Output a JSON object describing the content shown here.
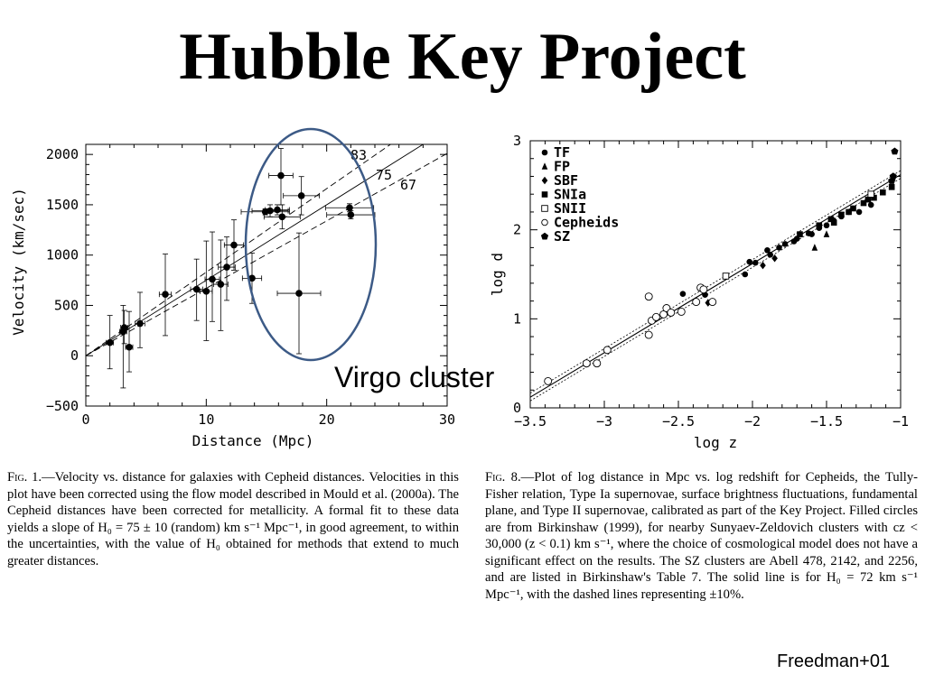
{
  "slide": {
    "title": "Hubble Key Project",
    "annotation": "Virgo cluster",
    "citation": "Freedman+01",
    "ellipse_color": "#3c5a86"
  },
  "caption_left": {
    "label": "Fig. 1.",
    "text": "Velocity vs. distance for galaxies with Cepheid distances. Velocities in this plot have been corrected using the flow model described in Mould et al. (2000a). The Cepheid distances have been corrected for metallicity. A formal fit to these data yields a slope of H₀ = 75 ± 10 (random) km s⁻¹ Mpc⁻¹, in good agreement, to within the uncertainties, with the value of H₀ obtained for methods that extend to much greater distances."
  },
  "caption_right": {
    "label": "Fig. 8.",
    "text": "Plot of log distance in Mpc vs. log redshift for Cepheids, the Tully-Fisher relation, Type Ia supernovae, surface brightness fluctuations, fundamental plane, and Type II supernovae, calibrated as part of the Key Project. Filled circles are from Birkinshaw (1999), for nearby Sunyaev-Zeldovich clusters with cz < 30,000 (z < 0.1) km s⁻¹, where the choice of cosmological model does not have a significant effect on the results. The SZ clusters are Abell 478, 2142, and 2256, and are listed in Birkinshaw's Table 7. The solid line is for H₀ = 72 km s⁻¹ Mpc⁻¹, with the dashed lines representing ±10%."
  },
  "chart_data": [
    {
      "type": "scatter",
      "title": "",
      "xlabel": "Distance (Mpc)",
      "ylabel": "Velocity (km/sec)",
      "xlim": [
        0,
        30
      ],
      "ylim": [
        -500,
        2100
      ],
      "xticks": [
        0,
        10,
        20,
        30
      ],
      "yticks": [
        -500,
        0,
        500,
        1000,
        1500,
        2000
      ],
      "xtick_labels": [
        "0",
        "10",
        "20",
        "30"
      ],
      "ytick_labels": [
        "−500",
        "0",
        "500",
        "1000",
        "1500",
        "2000"
      ],
      "grid": false,
      "points": [
        {
          "x": 2.0,
          "y": 130,
          "dx": 0.3,
          "ylo": -130,
          "yhi": 400
        },
        {
          "x": 3.1,
          "y": 240,
          "dx": 0.3,
          "ylo": -320,
          "yhi": 500
        },
        {
          "x": 3.2,
          "y": 280,
          "dx": 0.3,
          "ylo": 120,
          "yhi": 450
        },
        {
          "x": 3.6,
          "y": 85,
          "dx": 0.3,
          "ylo": -160,
          "yhi": 440
        },
        {
          "x": 4.5,
          "y": 320,
          "dx": 0.4,
          "ylo": 80,
          "yhi": 630
        },
        {
          "x": 6.6,
          "y": 610,
          "dx": 0.5,
          "ylo": 200,
          "yhi": 1010
        },
        {
          "x": 9.2,
          "y": 660,
          "dx": 0.5,
          "ylo": 350,
          "yhi": 960
        },
        {
          "x": 10.0,
          "y": 640,
          "dx": 0.5,
          "ylo": 150,
          "yhi": 1140
        },
        {
          "x": 10.5,
          "y": 760,
          "dx": 0.6,
          "ylo": 340,
          "yhi": 1230
        },
        {
          "x": 11.2,
          "y": 710,
          "dx": 0.6,
          "ylo": 250,
          "yhi": 1150
        },
        {
          "x": 11.7,
          "y": 880,
          "dx": 0.7,
          "ylo": 550,
          "yhi": 1180
        },
        {
          "x": 12.3,
          "y": 1100,
          "dx": 0.8,
          "ylo": 850,
          "yhi": 1350
        },
        {
          "x": 13.8,
          "y": 770,
          "dx": 0.8,
          "ylo": 520,
          "yhi": 1020
        },
        {
          "x": 14.9,
          "y": 1430,
          "dx": 2.0,
          "ylo": 1400,
          "yhi": 1460
        },
        {
          "x": 15.3,
          "y": 1440,
          "dx": 1.5,
          "ylo": 1380,
          "yhi": 1500
        },
        {
          "x": 15.9,
          "y": 1450,
          "dx": 1.0,
          "ylo": 1400,
          "yhi": 1500
        },
        {
          "x": 16.2,
          "y": 1790,
          "dx": 1.0,
          "ylo": 1500,
          "yhi": 2060
        },
        {
          "x": 16.3,
          "y": 1380,
          "dx": 1.5,
          "ylo": 1260,
          "yhi": 1500
        },
        {
          "x": 17.9,
          "y": 1590,
          "dx": 1.5,
          "ylo": 1400,
          "yhi": 1780
        },
        {
          "x": 17.7,
          "y": 620,
          "dx": 1.8,
          "ylo": 20,
          "yhi": 1220
        },
        {
          "x": 21.9,
          "y": 1470,
          "dx": 2.0,
          "ylo": 1430,
          "yhi": 1510
        },
        {
          "x": 22.0,
          "y": 1400,
          "dx": 2.0,
          "ylo": 1360,
          "yhi": 1440
        }
      ],
      "lines": [
        {
          "label": "83",
          "slope": 83,
          "style": "dashed"
        },
        {
          "label": "75",
          "slope": 75,
          "style": "solid"
        },
        {
          "label": "67",
          "slope": 67,
          "style": "dashed"
        }
      ]
    },
    {
      "type": "scatter",
      "title": "",
      "xlabel": "log z",
      "ylabel": "log d",
      "xlim": [
        -3.5,
        -1
      ],
      "ylim": [
        0,
        3
      ],
      "xticks": [
        -3.5,
        -3,
        -2.5,
        -2,
        -1.5,
        -1
      ],
      "yticks": [
        0,
        1,
        2,
        3
      ],
      "xtick_labels": [
        "−3.5",
        "−3",
        "−2.5",
        "−2",
        "−1.5",
        "−1"
      ],
      "ytick_labels": [
        "0",
        "1",
        "2",
        "3"
      ],
      "legend_position": "top-left",
      "series": [
        {
          "name": "TF",
          "marker": "filled-circle",
          "points": [
            [
              -2.47,
              1.28
            ],
            [
              -2.32,
              1.27
            ],
            [
              -2.05,
              1.5
            ],
            [
              -1.98,
              1.63
            ],
            [
              -1.88,
              1.72
            ],
            [
              -1.82,
              1.8
            ],
            [
              -1.78,
              1.84
            ],
            [
              -1.72,
              1.87
            ],
            [
              -1.6,
              1.95
            ],
            [
              -1.5,
              2.05
            ],
            [
              -1.4,
              2.15
            ],
            [
              -1.35,
              2.2
            ],
            [
              -1.2,
              2.28
            ],
            [
              -2.02,
              1.64
            ],
            [
              -1.9,
              1.77
            ],
            [
              -1.7,
              1.9
            ],
            [
              -1.62,
              1.96
            ],
            [
              -1.55,
              2.02
            ],
            [
              -1.45,
              2.1
            ],
            [
              -1.28,
              2.2
            ]
          ]
        },
        {
          "name": "FP",
          "marker": "triangle",
          "points": [
            [
              -1.58,
              1.8
            ],
            [
              -1.5,
              1.95
            ]
          ]
        },
        {
          "name": "SBF",
          "marker": "diamond",
          "points": [
            [
              -2.3,
              1.18
            ],
            [
              -1.93,
              1.6
            ],
            [
              -1.85,
              1.68
            ]
          ]
        },
        {
          "name": "SNIa",
          "marker": "filled-square",
          "points": [
            [
              -1.68,
              1.95
            ],
            [
              -1.55,
              2.05
            ],
            [
              -1.47,
              2.12
            ],
            [
              -1.4,
              2.17
            ],
            [
              -1.32,
              2.24
            ],
            [
              -1.25,
              2.3
            ],
            [
              -1.18,
              2.36
            ],
            [
              -1.12,
              2.42
            ],
            [
              -1.06,
              2.48
            ],
            [
              -1.45,
              2.08
            ],
            [
              -1.35,
              2.2
            ],
            [
              -1.22,
              2.34
            ]
          ]
        },
        {
          "name": "SNII",
          "marker": "open-square",
          "points": [
            [
              -2.18,
              1.48
            ],
            [
              -1.2,
              2.4
            ]
          ]
        },
        {
          "name": "Cepheids",
          "marker": "open-circle",
          "points": [
            [
              -3.38,
              0.3
            ],
            [
              -3.12,
              0.5
            ],
            [
              -3.05,
              0.5
            ],
            [
              -2.98,
              0.65
            ],
            [
              -2.7,
              0.82
            ],
            [
              -2.68,
              0.98
            ],
            [
              -2.65,
              1.02
            ],
            [
              -2.6,
              1.05
            ],
            [
              -2.58,
              1.12
            ],
            [
              -2.55,
              1.07
            ],
            [
              -2.7,
              1.25
            ],
            [
              -2.48,
              1.08
            ],
            [
              -2.38,
              1.19
            ],
            [
              -2.35,
              1.35
            ],
            [
              -2.33,
              1.33
            ],
            [
              -2.27,
              1.19
            ]
          ]
        },
        {
          "name": "SZ",
          "marker": "filled-pentagon",
          "points": [
            [
              -1.04,
              2.88
            ],
            [
              -1.05,
              2.6
            ],
            [
              -1.06,
              2.55
            ]
          ]
        }
      ],
      "lines": [
        {
          "label": "H0=72",
          "style": "solid"
        },
        {
          "label": "+10%",
          "style": "dashed"
        },
        {
          "label": "-10%",
          "style": "dashed"
        }
      ]
    }
  ]
}
